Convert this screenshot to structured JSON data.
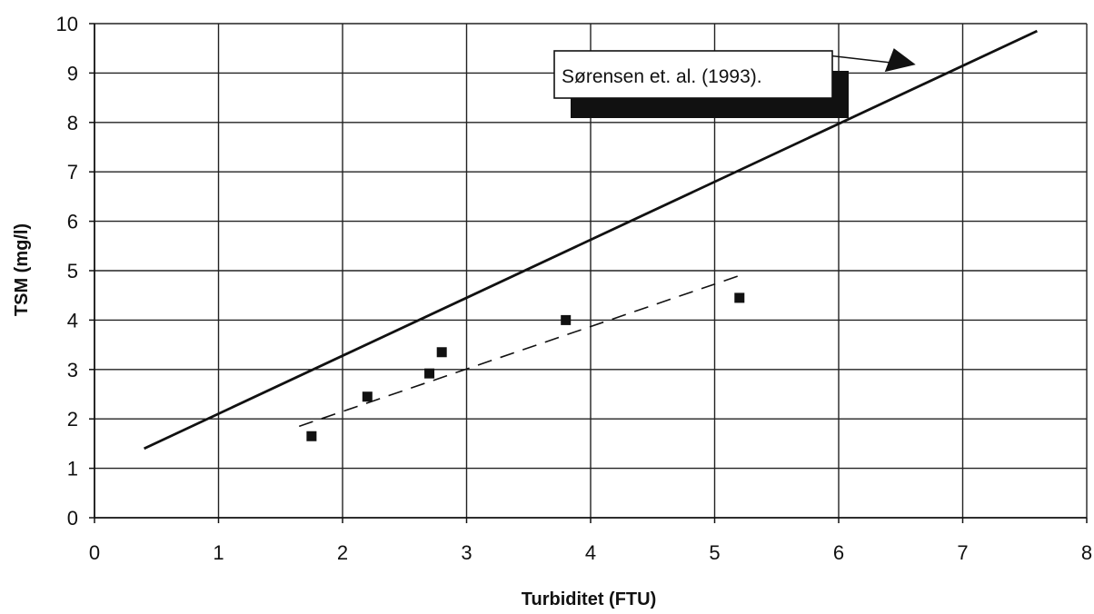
{
  "chart_data": {
    "type": "scatter",
    "title": "",
    "xlabel": "Turbiditet (FTU)",
    "ylabel": "TSM (mg/l)",
    "xlim": [
      0,
      8
    ],
    "ylim": [
      0,
      10
    ],
    "x_ticks": [
      0,
      1,
      2,
      3,
      4,
      5,
      6,
      7,
      8
    ],
    "y_ticks": [
      0,
      1,
      2,
      3,
      4,
      5,
      6,
      7,
      8,
      9,
      10
    ],
    "grid": true,
    "legend": "none",
    "series": [
      {
        "kind": "points",
        "marker": "square",
        "color": "#111111",
        "points": [
          {
            "x": 1.75,
            "y": 1.65
          },
          {
            "x": 2.2,
            "y": 2.45
          },
          {
            "x": 2.7,
            "y": 2.92
          },
          {
            "x": 2.8,
            "y": 3.35
          },
          {
            "x": 3.8,
            "y": 4.0
          },
          {
            "x": 5.2,
            "y": 4.45
          }
        ]
      },
      {
        "kind": "line",
        "style": "dashed",
        "color": "#111111",
        "points": [
          {
            "x": 1.65,
            "y": 1.85
          },
          {
            "x": 5.2,
            "y": 4.9
          }
        ]
      },
      {
        "kind": "line",
        "style": "solid",
        "color": "#111111",
        "points": [
          {
            "x": 0.4,
            "y": 1.4
          },
          {
            "x": 7.6,
            "y": 9.85
          }
        ]
      }
    ],
    "annotations": [
      {
        "text": "Sørensen et. al. (1993).",
        "box": "white-with-shadow",
        "arrow_to": {
          "x": 6.65,
          "y": 8.95
        }
      }
    ]
  }
}
